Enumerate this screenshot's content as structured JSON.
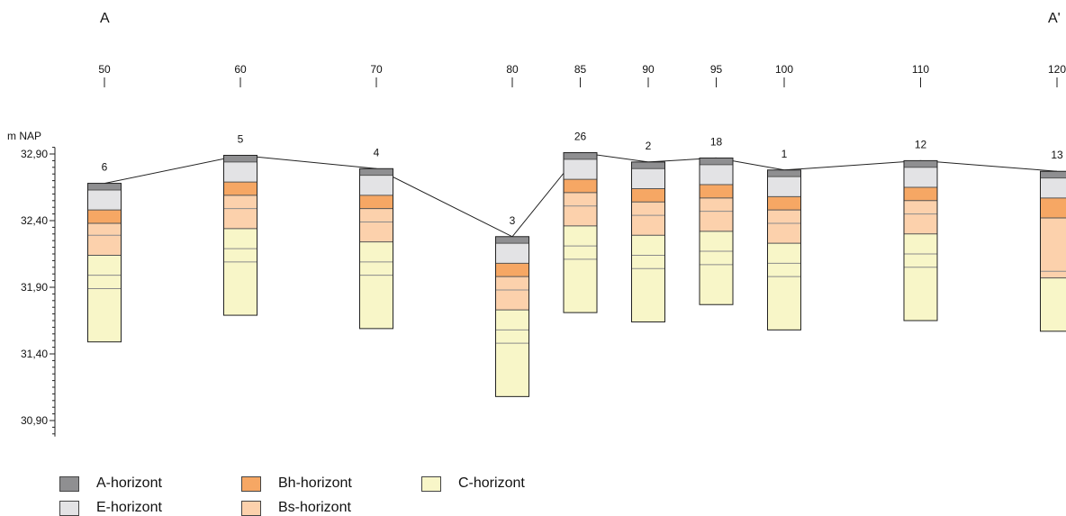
{
  "section": {
    "start_label": "A",
    "end_label": "A'",
    "y_axis_label": "m NAP"
  },
  "colors": {
    "A": "#8f8f91",
    "E": "#e3e3e5",
    "Bh": "#f6a764",
    "Bs": "#fcd1ac",
    "C": "#f8f6c8",
    "line": "#222222",
    "subline": "#8b8b8b"
  },
  "legend": [
    {
      "key": "A",
      "label": "A-horizont"
    },
    {
      "key": "E",
      "label": "E-horizont"
    },
    {
      "key": "Bh",
      "label": "Bh-horizont"
    },
    {
      "key": "Bs",
      "label": "Bs-horizont"
    },
    {
      "key": "C",
      "label": "C-horizont"
    }
  ],
  "chart_data": {
    "type": "soil-profile-cross-section",
    "y_unit": "m NAP",
    "y_ticks": [
      "32,90",
      "32,40",
      "31,90",
      "31,40",
      "30,90"
    ],
    "y_tick_values": [
      32.9,
      32.4,
      31.9,
      31.4,
      30.9
    ],
    "ylim": [
      30.8,
      32.95
    ],
    "x_ticks": [
      50,
      60,
      70,
      80,
      85,
      90,
      95,
      100,
      110,
      120
    ],
    "borings": [
      {
        "id": "6",
        "x": 50,
        "top": 32.68,
        "layers": [
          {
            "h": "A",
            "bottom": 32.63
          },
          {
            "h": "E",
            "bottom": 32.48
          },
          {
            "h": "Bh",
            "bottom": 32.38
          },
          {
            "h": "Bs",
            "bottom": 32.29,
            "style": "sub"
          },
          {
            "h": "Bs",
            "bottom": 32.14
          },
          {
            "h": "C",
            "bottom": 31.99,
            "style": "sub"
          },
          {
            "h": "C",
            "bottom": 31.89,
            "style": "sub"
          },
          {
            "h": "C",
            "bottom": 31.49
          }
        ]
      },
      {
        "id": "5",
        "x": 60,
        "top": 32.89,
        "layers": [
          {
            "h": "A",
            "bottom": 32.84
          },
          {
            "h": "E",
            "bottom": 32.69
          },
          {
            "h": "Bh",
            "bottom": 32.59
          },
          {
            "h": "Bs",
            "bottom": 32.49,
            "style": "sub"
          },
          {
            "h": "Bs",
            "bottom": 32.34
          },
          {
            "h": "C",
            "bottom": 32.19,
            "style": "sub"
          },
          {
            "h": "C",
            "bottom": 32.09,
            "style": "sub"
          },
          {
            "h": "C",
            "bottom": 31.69
          }
        ]
      },
      {
        "id": "4",
        "x": 70,
        "top": 32.79,
        "layers": [
          {
            "h": "A",
            "bottom": 32.74
          },
          {
            "h": "E",
            "bottom": 32.59
          },
          {
            "h": "Bh",
            "bottom": 32.49
          },
          {
            "h": "Bs",
            "bottom": 32.39,
            "style": "sub"
          },
          {
            "h": "Bs",
            "bottom": 32.24
          },
          {
            "h": "C",
            "bottom": 32.09,
            "style": "sub"
          },
          {
            "h": "C",
            "bottom": 31.99,
            "style": "sub"
          },
          {
            "h": "C",
            "bottom": 31.59
          }
        ]
      },
      {
        "id": "3",
        "x": 80,
        "top": 32.28,
        "layers": [
          {
            "h": "A",
            "bottom": 32.23
          },
          {
            "h": "E",
            "bottom": 32.08
          },
          {
            "h": "Bh",
            "bottom": 31.98
          },
          {
            "h": "Bs",
            "bottom": 31.88,
            "style": "sub"
          },
          {
            "h": "Bs",
            "bottom": 31.73
          },
          {
            "h": "C",
            "bottom": 31.58,
            "style": "sub"
          },
          {
            "h": "C",
            "bottom": 31.48,
            "style": "sub"
          },
          {
            "h": "C",
            "bottom": 31.08
          }
        ]
      },
      {
        "id": "26",
        "x": 85,
        "top": 32.91,
        "layers": [
          {
            "h": "A",
            "bottom": 32.86
          },
          {
            "h": "E",
            "bottom": 32.71
          },
          {
            "h": "Bh",
            "bottom": 32.61
          },
          {
            "h": "Bs",
            "bottom": 32.51,
            "style": "sub"
          },
          {
            "h": "Bs",
            "bottom": 32.36
          },
          {
            "h": "C",
            "bottom": 32.21,
            "style": "sub"
          },
          {
            "h": "C",
            "bottom": 32.11,
            "style": "sub"
          },
          {
            "h": "C",
            "bottom": 31.71
          }
        ]
      },
      {
        "id": "2",
        "x": 90,
        "top": 32.84,
        "layers": [
          {
            "h": "A",
            "bottom": 32.79
          },
          {
            "h": "E",
            "bottom": 32.64
          },
          {
            "h": "Bh",
            "bottom": 32.54
          },
          {
            "h": "Bs",
            "bottom": 32.44,
            "style": "sub"
          },
          {
            "h": "Bs",
            "bottom": 32.29
          },
          {
            "h": "C",
            "bottom": 32.14,
            "style": "sub"
          },
          {
            "h": "C",
            "bottom": 32.04,
            "style": "sub"
          },
          {
            "h": "C",
            "bottom": 31.64
          }
        ]
      },
      {
        "id": "18",
        "x": 95,
        "top": 32.87,
        "layers": [
          {
            "h": "A",
            "bottom": 32.82
          },
          {
            "h": "E",
            "bottom": 32.67
          },
          {
            "h": "Bh",
            "bottom": 32.57
          },
          {
            "h": "Bs",
            "bottom": 32.47,
            "style": "sub"
          },
          {
            "h": "Bs",
            "bottom": 32.32
          },
          {
            "h": "C",
            "bottom": 32.17,
            "style": "sub"
          },
          {
            "h": "C",
            "bottom": 32.07,
            "style": "sub"
          },
          {
            "h": "C",
            "bottom": 31.77
          }
        ]
      },
      {
        "id": "1",
        "x": 100,
        "top": 32.78,
        "layers": [
          {
            "h": "A",
            "bottom": 32.73
          },
          {
            "h": "E",
            "bottom": 32.58
          },
          {
            "h": "Bh",
            "bottom": 32.48
          },
          {
            "h": "Bs",
            "bottom": 32.38,
            "style": "sub"
          },
          {
            "h": "Bs",
            "bottom": 32.23
          },
          {
            "h": "C",
            "bottom": 32.08,
            "style": "sub"
          },
          {
            "h": "C",
            "bottom": 31.98,
            "style": "sub"
          },
          {
            "h": "C",
            "bottom": 31.58
          }
        ]
      },
      {
        "id": "12",
        "x": 110,
        "top": 32.85,
        "layers": [
          {
            "h": "A",
            "bottom": 32.8
          },
          {
            "h": "E",
            "bottom": 32.65
          },
          {
            "h": "Bh",
            "bottom": 32.55
          },
          {
            "h": "Bs",
            "bottom": 32.45,
            "style": "sub"
          },
          {
            "h": "Bs",
            "bottom": 32.3
          },
          {
            "h": "C",
            "bottom": 32.15,
            "style": "sub"
          },
          {
            "h": "C",
            "bottom": 32.05,
            "style": "sub"
          },
          {
            "h": "C",
            "bottom": 31.65
          }
        ]
      },
      {
        "id": "13",
        "x": 120,
        "top": 32.77,
        "layers": [
          {
            "h": "A",
            "bottom": 32.72
          },
          {
            "h": "E",
            "bottom": 32.57
          },
          {
            "h": "Bh",
            "bottom": 32.42
          },
          {
            "h": "Bs",
            "bottom": 32.02,
            "style": "sub"
          },
          {
            "h": "Bs",
            "bottom": 31.97
          },
          {
            "h": "C",
            "bottom": 31.57
          }
        ]
      }
    ]
  }
}
